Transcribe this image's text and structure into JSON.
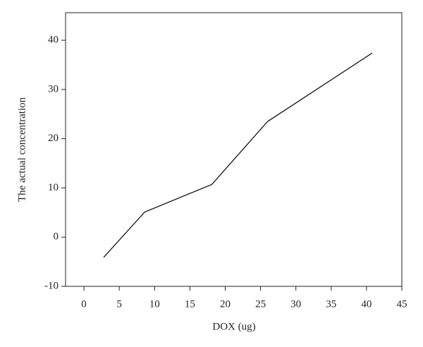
{
  "chart_data": {
    "type": "line",
    "x_label": "DOX (ug)",
    "y_label": "The actual concentration",
    "x": [
      2.8,
      8.6,
      18.1,
      26,
      40.8
    ],
    "series": [
      {
        "color": "#111111",
        "values": [
          -4.1,
          5.1,
          10.7,
          23.5,
          37.4
        ]
      }
    ],
    "xlim": [
      -2.6,
      45
    ],
    "xticks": [
      0,
      5,
      10,
      15,
      20,
      25,
      30,
      35,
      40,
      45
    ],
    "ylim": [
      -10,
      45.6
    ],
    "yticks": [
      -10,
      0,
      10,
      20,
      30,
      40
    ],
    "grid": false
  }
}
